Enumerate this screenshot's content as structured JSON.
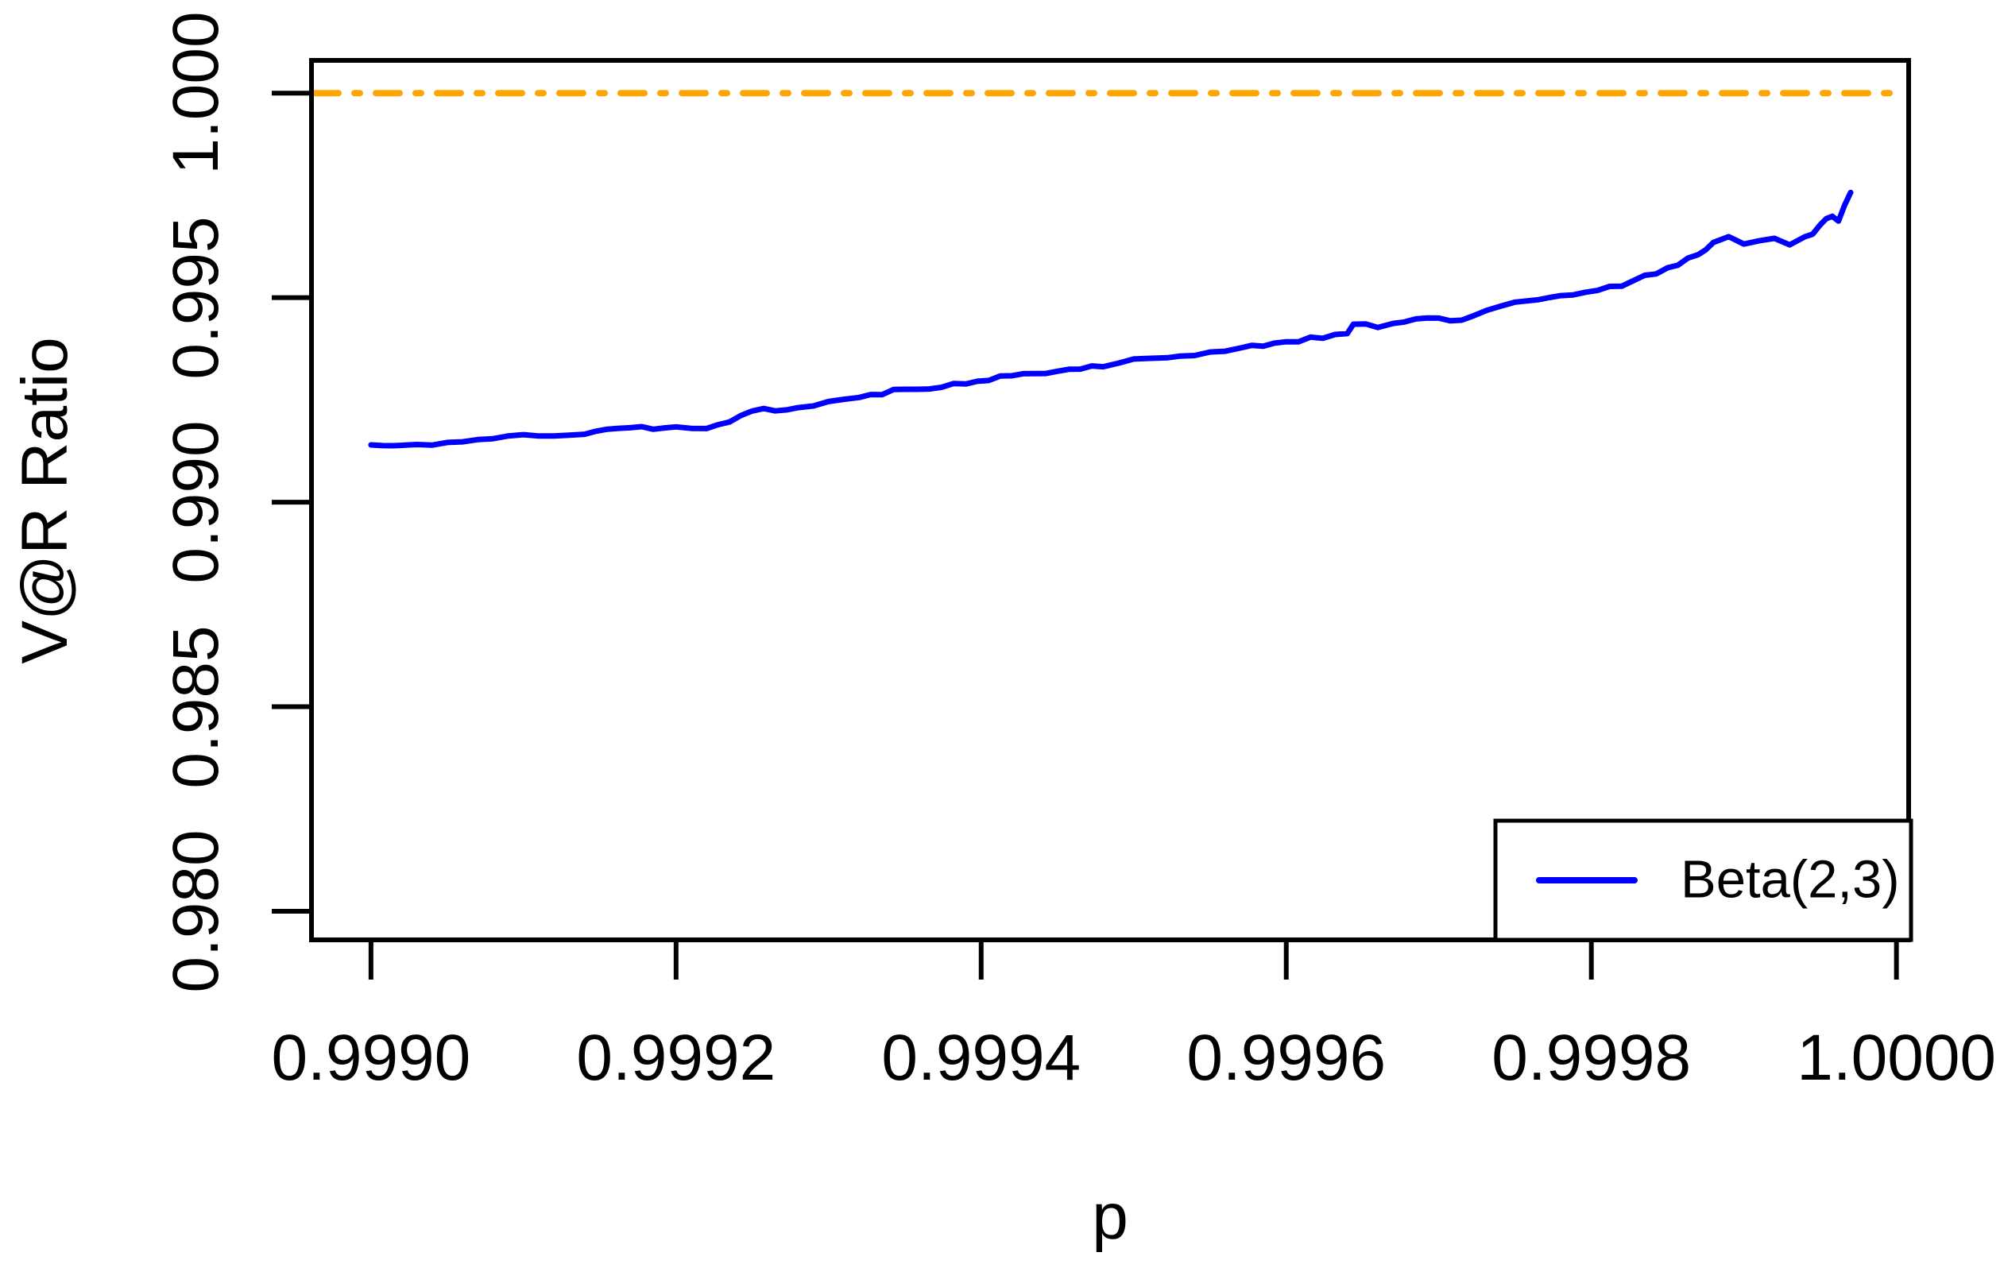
{
  "chart_data": {
    "type": "line",
    "title": "",
    "xlabel": "p",
    "ylabel": "V@R Ratio",
    "xlim": [
      0.999,
      1.0
    ],
    "ylim": [
      0.98,
      1.0
    ],
    "x_range_padded": [
      0.998961,
      1.000008
    ],
    "y_range_padded": [
      0.9793,
      1.0008
    ],
    "grid": false,
    "x_ticks": [
      0.999,
      0.9992,
      0.9994,
      0.9996,
      0.9998,
      1.0
    ],
    "x_tick_labels": [
      "0.9990",
      "0.9992",
      "0.9994",
      "0.9996",
      "0.9998",
      "1.0000"
    ],
    "y_ticks": [
      0.98,
      0.985,
      0.99,
      0.995,
      1.0
    ],
    "y_tick_labels": [
      "0.980",
      "0.985",
      "0.990",
      "0.995",
      "1.000"
    ],
    "reference_line": {
      "y": 1.0,
      "color": "#FFA500",
      "style": "dotdash"
    },
    "legend": {
      "position": "bottomright",
      "entries": [
        {
          "label": "Beta(2,3)",
          "color": "#0000FF"
        }
      ]
    },
    "series": [
      {
        "name": "Beta(2,3)",
        "color": "#0000FF",
        "points": [
          [
            0.999,
            0.9914
          ],
          [
            0.999015,
            0.99138
          ],
          [
            0.99903,
            0.99141
          ],
          [
            0.99905,
            0.99146
          ],
          [
            0.99907,
            0.99153
          ],
          [
            0.99909,
            0.99162
          ],
          [
            0.9991,
            0.99165
          ],
          [
            0.99912,
            0.99162
          ],
          [
            0.99914,
            0.99166
          ],
          [
            0.99917,
            0.99182
          ],
          [
            0.9992,
            0.99184
          ],
          [
            0.99922,
            0.9918
          ],
          [
            0.999235,
            0.99196
          ],
          [
            0.99925,
            0.99223
          ],
          [
            0.99928,
            0.99231
          ],
          [
            0.9993,
            0.99246
          ],
          [
            0.99932,
            0.99256
          ],
          [
            0.99935,
            0.99276
          ],
          [
            0.99939,
            0.99289
          ],
          [
            0.99942,
            0.99309
          ],
          [
            0.99945,
            0.9932
          ],
          [
            0.99948,
            0.99331
          ],
          [
            0.9995,
            0.9935
          ],
          [
            0.99953,
            0.99357
          ],
          [
            0.99955,
            0.99367
          ],
          [
            0.99957,
            0.99377
          ],
          [
            0.9996,
            0.99392
          ],
          [
            0.99964,
            0.99412
          ],
          [
            0.999644,
            0.99435
          ],
          [
            0.99966,
            0.99427
          ],
          [
            0.99967,
            0.99437
          ],
          [
            0.9997,
            0.9945
          ],
          [
            0.999715,
            0.99445
          ],
          [
            0.999723,
            0.99456
          ],
          [
            0.99975,
            0.99489
          ],
          [
            0.99978,
            0.99505
          ],
          [
            0.99982,
            0.99528
          ],
          [
            0.99985,
            0.99573
          ],
          [
            0.99987,
            0.99605
          ],
          [
            0.99988,
            0.99635
          ],
          [
            0.99989,
            0.99649
          ],
          [
            0.9999,
            0.99631
          ],
          [
            0.99991,
            0.99639
          ],
          [
            0.99992,
            0.99645
          ],
          [
            0.99993,
            0.99629
          ],
          [
            0.99994,
            0.99649
          ],
          [
            0.999945,
            0.99655
          ],
          [
            0.99995,
            0.99678
          ],
          [
            0.999954,
            0.99693
          ],
          [
            0.999958,
            0.99699
          ],
          [
            0.999962,
            0.99687
          ],
          [
            0.999966,
            0.99726
          ],
          [
            0.99997,
            0.99757
          ]
        ]
      }
    ]
  },
  "colors": {
    "background": "#FFFFFF",
    "axis": "#000000",
    "series_blue": "#0000FF",
    "reference_orange": "#FFA500"
  }
}
